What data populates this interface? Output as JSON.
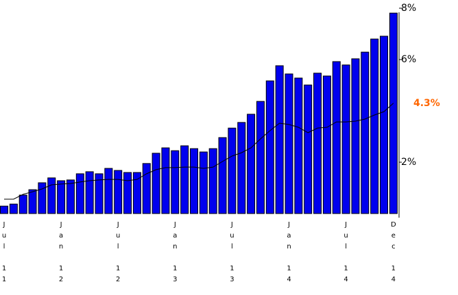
{
  "chart_data": {
    "type": "bar",
    "categories": [
      "Jul 11",
      null,
      null,
      null,
      null,
      null,
      "Jan 12",
      null,
      null,
      null,
      null,
      null,
      "Jul 12",
      null,
      null,
      null,
      null,
      null,
      "Jan 13",
      null,
      null,
      null,
      null,
      null,
      "Jul 13",
      null,
      null,
      null,
      null,
      null,
      "Jan 14",
      null,
      null,
      null,
      null,
      null,
      "Jul 14",
      null,
      null,
      null,
      null,
      "Dec 14"
    ],
    "series": [
      {
        "type": "bar",
        "color": "#0000ee",
        "values": [
          0.29,
          0.37,
          0.72,
          0.93,
          1.2,
          1.39,
          1.28,
          1.31,
          1.55,
          1.63,
          1.55,
          1.76,
          1.68,
          1.6,
          1.6,
          1.95,
          2.35,
          2.56,
          2.45,
          2.64,
          2.53,
          2.4,
          2.53,
          2.96,
          3.33,
          3.55,
          3.87,
          4.37,
          5.17,
          5.76,
          5.44,
          5.28,
          5.01,
          5.47,
          5.36,
          5.92,
          5.79,
          6.03,
          6.29,
          6.8,
          6.91,
          7.81
        ]
      },
      {
        "type": "line",
        "color": "#000000",
        "values": [
          0.56,
          0.56,
          0.75,
          0.85,
          0.96,
          1.12,
          1.15,
          1.17,
          1.23,
          1.28,
          1.31,
          1.33,
          1.33,
          1.28,
          1.33,
          1.55,
          1.71,
          1.79,
          1.79,
          1.81,
          1.81,
          1.76,
          1.81,
          2.03,
          2.24,
          2.37,
          2.56,
          2.91,
          3.23,
          3.52,
          3.47,
          3.36,
          3.15,
          3.33,
          3.36,
          3.57,
          3.57,
          3.6,
          3.68,
          3.84,
          3.97,
          4.3
        ],
        "value_labels": [
          null,
          null,
          null,
          null,
          null,
          null,
          null,
          null,
          null,
          null,
          null,
          null,
          null,
          null,
          null,
          null,
          null,
          null,
          null,
          null,
          null,
          null,
          null,
          null,
          null,
          null,
          null,
          null,
          null,
          null,
          null,
          null,
          null,
          null,
          null,
          null,
          null,
          null,
          null,
          null,
          null,
          "4.3%"
        ],
        "label_color": "#ff6600"
      }
    ],
    "ylim": [
      -0.16,
      8.16
    ],
    "yticks": [
      {
        "value": 2,
        "label": "2%"
      },
      {
        "value": 6,
        "label": "6%"
      },
      {
        "value": 8,
        "label": "8%"
      }
    ],
    "grid": false
  }
}
